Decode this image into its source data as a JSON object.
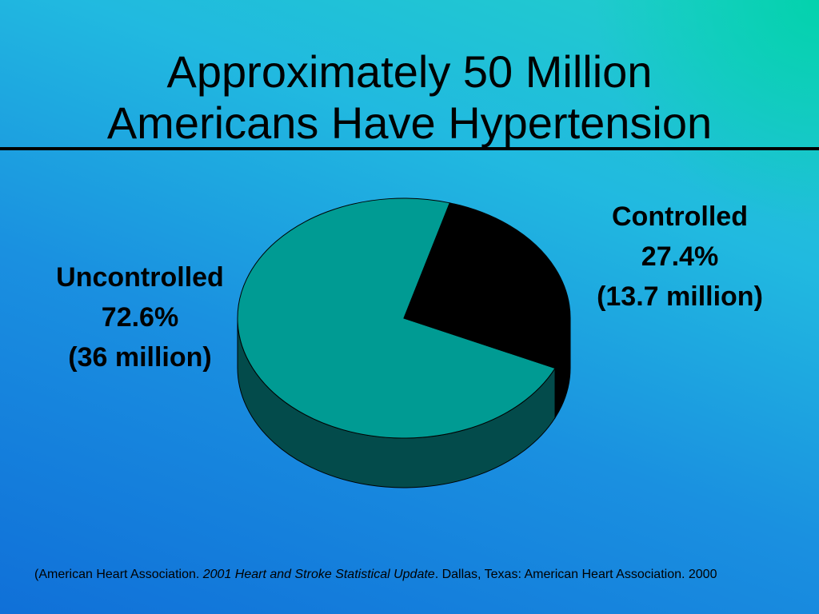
{
  "title": {
    "line1": "Approximately 50 Million",
    "line2": "Americans Have Hypertension"
  },
  "chart_data": {
    "type": "pie",
    "title": "Approximately 50 Million Americans Have Hypertension",
    "slices": [
      {
        "name": "Uncontrolled",
        "percent": 72.6,
        "value_label": "(36 million)",
        "color": "#009b93"
      },
      {
        "name": "Controlled",
        "percent": 27.4,
        "value_label": "(13.7 million)",
        "color": "#000000"
      }
    ],
    "style": "3d"
  },
  "labels": {
    "uncontrolled": {
      "name": "Uncontrolled",
      "percent": "72.6%",
      "count": "(36 million)"
    },
    "controlled": {
      "name": "Controlled",
      "percent": "27.4%",
      "count": "(13.7 million)"
    }
  },
  "citation": {
    "prefix": "(American Heart Association. ",
    "publication": "2001 Heart and Stroke Statistical Update",
    "suffix": ". Dallas, Texas: American Heart Association. 2000"
  },
  "colors": {
    "slice_top": "#009b93",
    "slice_side": "#034b4b",
    "controlled": "#000000"
  }
}
